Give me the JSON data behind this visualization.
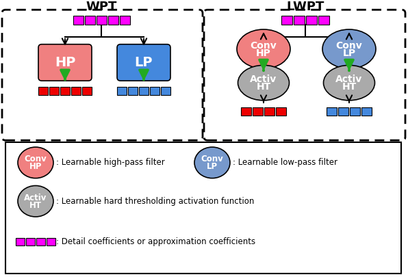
{
  "title_wpt": "WPT",
  "title_lwpt": "LWPT",
  "bg_color": "#ffffff",
  "magenta_color": "#FF00FF",
  "red_color": "#EE0000",
  "blue_color": "#4488DD",
  "salmon_color": "#F08080",
  "light_blue_color": "#7799CC",
  "gray_color": "#AAAAAA",
  "green_arrow_color": "#22AA22",
  "legend_texts_row1": [
    ": Learnable high-pass filter",
    ": Learnable low-pass filter"
  ],
  "legend_texts_row2": ": Learnable hard thresholding activation function",
  "legend_texts_row3": ": Detail coefficients or approximation coefficients"
}
